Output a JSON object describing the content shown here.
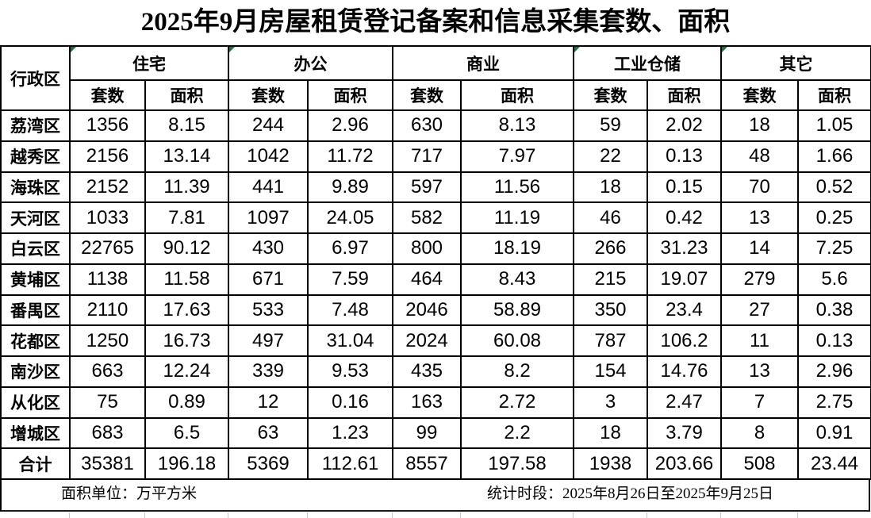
{
  "title": "2025年9月房屋租赁登记备案和信息采集套数、面积",
  "table": {
    "district_header": "行政区",
    "groups": [
      {
        "label": "住宅",
        "error_marker": true
      },
      {
        "label": "办公",
        "error_marker": true
      },
      {
        "label": "商业",
        "error_marker": false
      },
      {
        "label": "工业仓储",
        "error_marker": true
      },
      {
        "label": "其它",
        "error_marker": true
      }
    ],
    "subheader": {
      "units": "套数",
      "area": "面积"
    },
    "rows": [
      {
        "district": "荔湾区",
        "values": [
          "1356",
          "8.15",
          "244",
          "2.96",
          "630",
          "8.13",
          "59",
          "2.02",
          "18",
          "1.05"
        ]
      },
      {
        "district": "越秀区",
        "values": [
          "2156",
          "13.14",
          "1042",
          "11.72",
          "717",
          "7.97",
          "22",
          "0.13",
          "48",
          "1.66"
        ]
      },
      {
        "district": "海珠区",
        "values": [
          "2152",
          "11.39",
          "441",
          "9.89",
          "597",
          "11.56",
          "18",
          "0.15",
          "70",
          "0.52"
        ]
      },
      {
        "district": "天河区",
        "values": [
          "1033",
          "7.81",
          "1097",
          "24.05",
          "582",
          "11.19",
          "46",
          "0.42",
          "13",
          "0.25"
        ]
      },
      {
        "district": "白云区",
        "values": [
          "22765",
          "90.12",
          "430",
          "6.97",
          "800",
          "18.19",
          "266",
          "31.23",
          "14",
          "7.25"
        ]
      },
      {
        "district": "黄埔区",
        "values": [
          "1138",
          "11.58",
          "671",
          "7.59",
          "464",
          "8.43",
          "215",
          "19.07",
          "279",
          "5.6"
        ]
      },
      {
        "district": "番禺区",
        "values": [
          "2110",
          "17.63",
          "533",
          "7.48",
          "2046",
          "58.89",
          "350",
          "23.4",
          "27",
          "0.38"
        ]
      },
      {
        "district": "花都区",
        "values": [
          "1250",
          "16.73",
          "497",
          "31.04",
          "2024",
          "60.08",
          "787",
          "106.2",
          "11",
          "0.13"
        ]
      },
      {
        "district": "南沙区",
        "values": [
          "663",
          "12.24",
          "339",
          "9.53",
          "435",
          "8.2",
          "154",
          "14.76",
          "13",
          "2.96"
        ]
      },
      {
        "district": "从化区",
        "values": [
          "75",
          "0.89",
          "12",
          "0.16",
          "163",
          "2.72",
          "3",
          "2.47",
          "7",
          "2.75"
        ]
      },
      {
        "district": "增城区",
        "values": [
          "683",
          "6.5",
          "63",
          "1.23",
          "99",
          "2.2",
          "18",
          "3.79",
          "8",
          "0.91"
        ]
      }
    ],
    "total": {
      "district": "合计",
      "values": [
        "35381",
        "196.18",
        "5369",
        "112.61",
        "8557",
        "197.58",
        "1938",
        "203.66",
        "508",
        "23.44"
      ]
    }
  },
  "footer": {
    "unit_note": "面积单位：万平方米",
    "period_note": "统计时段：2025年8月26日至2025年9月25日"
  },
  "colors": {
    "error_marker_green": "#1e7145",
    "border_black": "#000000",
    "gridline_gray": "#c9c9c9"
  }
}
